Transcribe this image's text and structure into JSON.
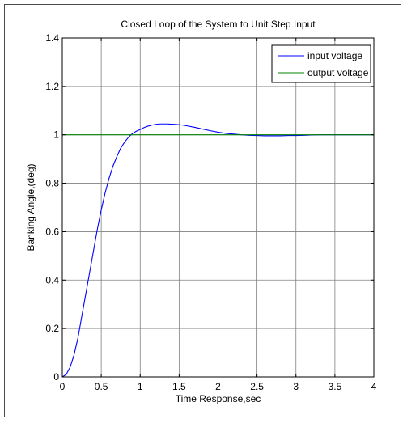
{
  "chart_data": {
    "type": "line",
    "title": "Closed Loop of the System to Unit Step Input",
    "xlabel": "Time Response,sec",
    "ylabel": "Banking Angle,(deg)",
    "xlim": [
      0,
      4
    ],
    "ylim": [
      0,
      1.4
    ],
    "xticks": [
      "0",
      "0.5",
      "1",
      "1.5",
      "2",
      "2.5",
      "3",
      "3.5",
      "4"
    ],
    "yticks": [
      "0",
      "0.2",
      "0.4",
      "0.6",
      "0.8",
      "1",
      "1.2",
      "1.4"
    ],
    "grid": true,
    "legend_position": "top-right",
    "series": [
      {
        "name": "input voltage",
        "color": "#0000ff",
        "x": [
          0,
          0.05,
          0.1,
          0.15,
          0.2,
          0.25,
          0.3,
          0.35,
          0.4,
          0.45,
          0.5,
          0.55,
          0.6,
          0.65,
          0.7,
          0.75,
          0.8,
          0.85,
          0.9,
          0.95,
          1.0,
          1.05,
          1.1,
          1.15,
          1.2,
          1.25,
          1.3,
          1.35,
          1.4,
          1.45,
          1.5,
          1.55,
          1.6,
          1.7,
          1.8,
          1.9,
          2.0,
          2.1,
          2.2,
          2.3,
          2.4,
          2.5,
          2.6,
          2.7,
          2.8,
          2.9,
          3.0,
          3.1,
          3.2,
          3.3,
          3.4,
          3.5,
          3.6,
          3.7,
          3.8,
          3.9,
          4.0
        ],
        "y": [
          0,
          0.01,
          0.04,
          0.09,
          0.16,
          0.25,
          0.34,
          0.43,
          0.52,
          0.61,
          0.69,
          0.76,
          0.82,
          0.87,
          0.91,
          0.945,
          0.97,
          0.99,
          1.005,
          1.015,
          1.022,
          1.03,
          1.036,
          1.04,
          1.043,
          1.045,
          1.045,
          1.045,
          1.044,
          1.043,
          1.042,
          1.04,
          1.037,
          1.031,
          1.024,
          1.017,
          1.011,
          1.006,
          1.003,
          1.0,
          0.998,
          0.997,
          0.996,
          0.996,
          0.996,
          0.997,
          0.997,
          0.998,
          0.999,
          1.0,
          1.0,
          1.0,
          1.0,
          1.0,
          1.0,
          1.0,
          1.0
        ]
      },
      {
        "name": "output voltage",
        "color": "#008000",
        "x": [
          0,
          4
        ],
        "y": [
          1,
          1
        ]
      }
    ]
  }
}
